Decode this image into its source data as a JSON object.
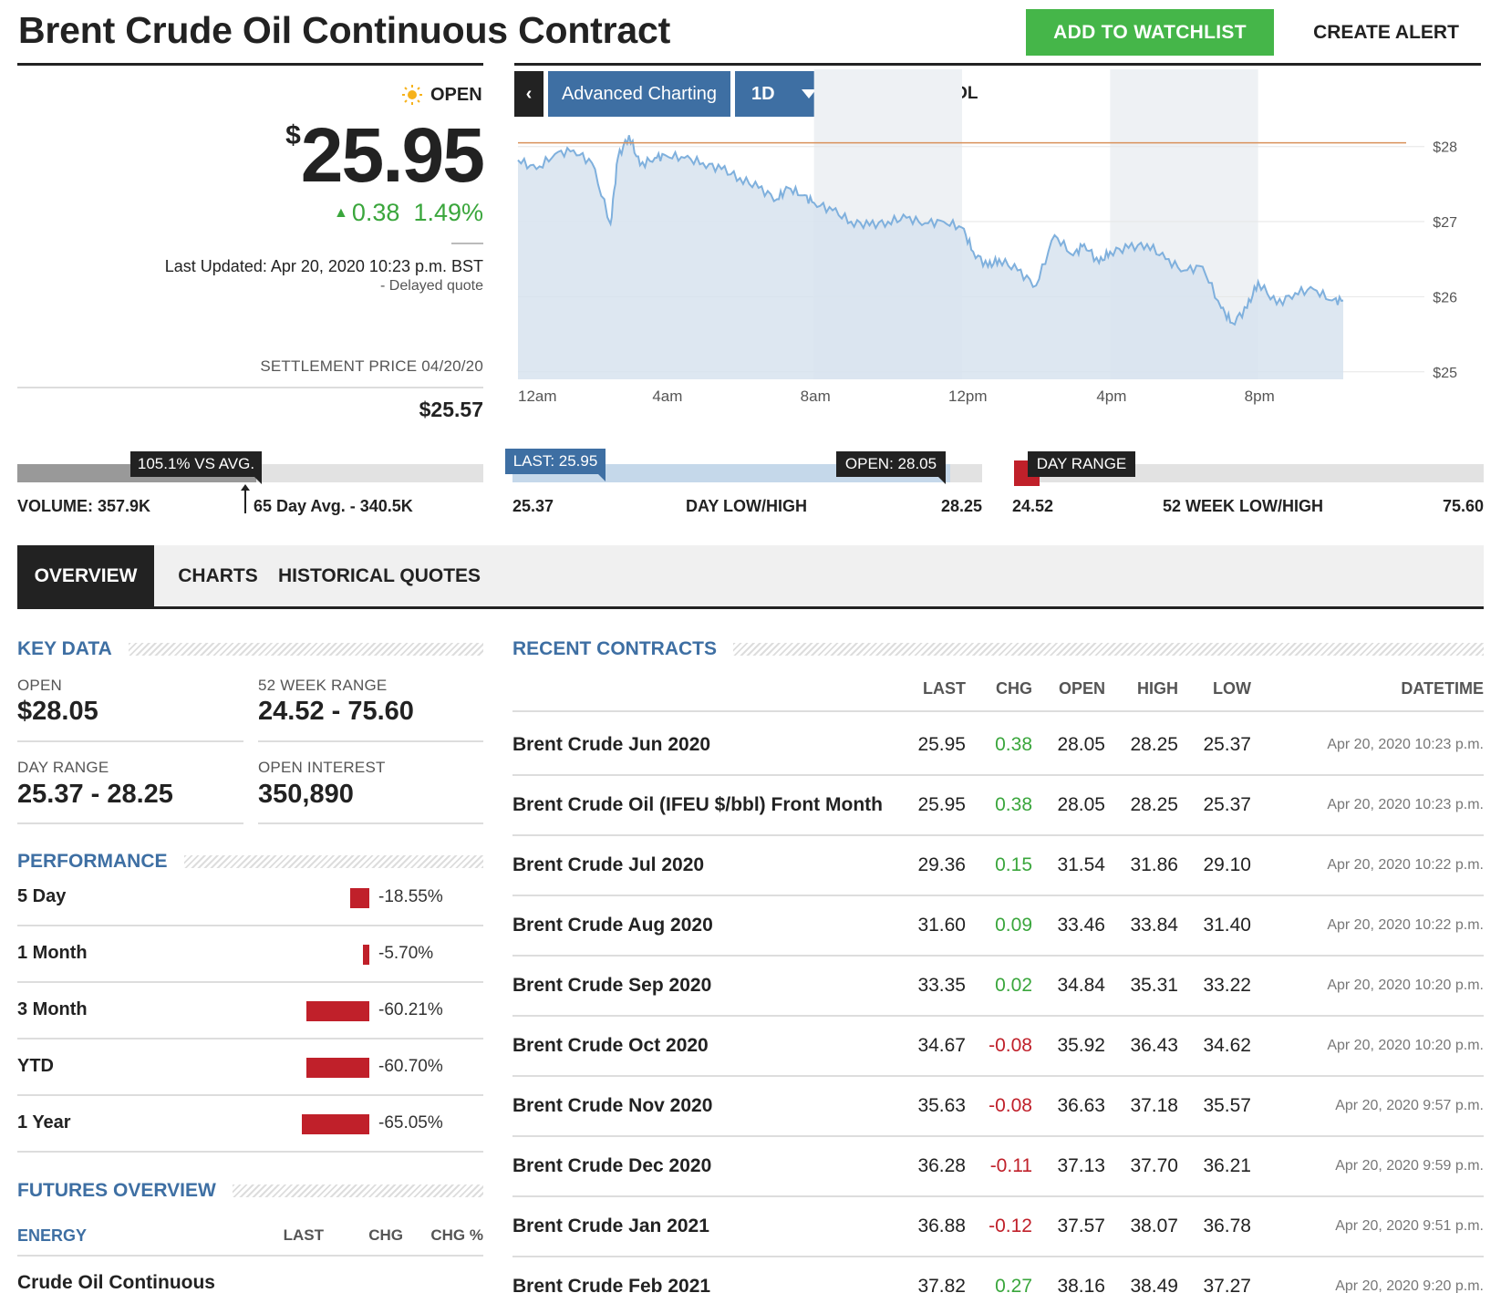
{
  "header": {
    "title": "Brent Crude Oil Continuous Contract",
    "watchlist_label": "ADD TO WATCHLIST",
    "alert_label": "CREATE ALERT"
  },
  "quote": {
    "status": "OPEN",
    "currency": "$",
    "price": "25.95",
    "change": "0.38",
    "change_pct": "1.49%",
    "last_updated": "Last Updated: Apr 20, 2020 10:23 p.m. BST",
    "delayed": "- Delayed quote",
    "settlement_label": "SETTLEMENT PRICE 04/20/20",
    "settlement_value": "$25.57"
  },
  "toolbar": {
    "back": "‹",
    "advanced": "Advanced Charting",
    "interval": "1D",
    "dollar": "$",
    "percent": "%",
    "volume": "VOL"
  },
  "chart_data": {
    "type": "area",
    "x_ticks": [
      "12am",
      "4am",
      "8am",
      "12pm",
      "4pm",
      "8pm"
    ],
    "y_ticks": [
      "$28",
      "$27",
      "$26",
      "$25"
    ],
    "ylim": [
      24.9,
      28.3
    ],
    "reference_line": 28.05,
    "x": [
      0,
      0.5,
      1,
      1.5,
      2,
      2.5,
      2.7,
      3,
      3.3,
      3.7,
      4,
      4.5,
      5,
      5.5,
      6,
      6.5,
      7,
      7.3,
      7.7,
      8,
      8.5,
      9,
      9.5,
      10,
      10.5,
      11,
      11.5,
      12,
      12.3,
      12.7,
      13,
      13.5,
      14,
      14.5,
      15,
      15.3,
      15.7,
      16,
      16.5,
      17,
      17.5,
      18,
      18.5,
      19,
      19.3,
      19.7,
      20,
      20.5,
      21,
      21.5,
      22,
      22.3
    ],
    "values": [
      27.82,
      27.7,
      27.9,
      27.95,
      27.78,
      26.97,
      27.85,
      28.15,
      27.75,
      27.85,
      27.88,
      27.85,
      27.78,
      27.7,
      27.58,
      27.45,
      27.3,
      27.45,
      27.35,
      27.25,
      27.15,
      27.0,
      26.95,
      27.0,
      27.05,
      26.98,
      27.0,
      26.92,
      26.6,
      26.4,
      26.5,
      26.35,
      26.15,
      26.82,
      26.55,
      26.7,
      26.45,
      26.6,
      26.65,
      26.7,
      26.5,
      26.35,
      26.4,
      25.85,
      25.65,
      25.85,
      26.2,
      25.9,
      26.05,
      26.1,
      25.95,
      25.95
    ],
    "legend": "none",
    "grid": true
  },
  "ranges": {
    "volume_tag": "105.1% VS AVG.",
    "volume": "VOLUME: 357.9K",
    "volume_avg": "65 Day Avg. - 340.5K",
    "volume_fill": 1.051,
    "last_tag": "LAST: 25.95",
    "open_tag": "OPEN: 28.05",
    "day_low": "25.37",
    "day_label": "DAY LOW/HIGH",
    "day_high": "28.25",
    "day_range_tag": "DAY RANGE",
    "wk_low": "24.52",
    "wk_label": "52 WEEK LOW/HIGH",
    "wk_high": "75.60"
  },
  "tabs": [
    "OVERVIEW",
    "CHARTS",
    "HISTORICAL QUOTES"
  ],
  "key_data": {
    "title": "KEY DATA",
    "open_label": "OPEN",
    "open_value": "$28.05",
    "wk_label": "52 WEEK RANGE",
    "wk_value": "24.52 - 75.60",
    "day_label": "DAY RANGE",
    "day_value": "25.37 - 28.25",
    "oi_label": "OPEN INTEREST",
    "oi_value": "350,890"
  },
  "performance": {
    "title": "PERFORMANCE",
    "rows": [
      {
        "label": "5 Day",
        "value": "-18.55%",
        "pct": -18.55
      },
      {
        "label": "1 Month",
        "value": "-5.70%",
        "pct": -5.7
      },
      {
        "label": "3 Month",
        "value": "-60.21%",
        "pct": -60.21
      },
      {
        "label": "YTD",
        "value": "-60.70%",
        "pct": -60.7
      },
      {
        "label": "1 Year",
        "value": "-65.05%",
        "pct": -65.05
      }
    ]
  },
  "futures": {
    "title": "FUTURES OVERVIEW",
    "category": "ENERGY",
    "h_last": "LAST",
    "h_chg": "CHG",
    "h_chgpct": "CHG %",
    "row_name": "Crude Oil Continuous"
  },
  "recent": {
    "title": "RECENT CONTRACTS",
    "headers": [
      "LAST",
      "CHG",
      "OPEN",
      "HIGH",
      "LOW",
      "DATETIME"
    ],
    "rows": [
      {
        "name": "Brent Crude Jun 2020",
        "last": "25.95",
        "chg": "0.38",
        "open": "28.05",
        "high": "28.25",
        "low": "25.37",
        "time": "Apr 20, 2020 10:23 p.m."
      },
      {
        "name": "Brent Crude Oil (IFEU $/bbl) Front Month",
        "last": "25.95",
        "chg": "0.38",
        "open": "28.05",
        "high": "28.25",
        "low": "25.37",
        "time": "Apr 20, 2020 10:23 p.m."
      },
      {
        "name": "Brent Crude Jul 2020",
        "last": "29.36",
        "chg": "0.15",
        "open": "31.54",
        "high": "31.86",
        "low": "29.10",
        "time": "Apr 20, 2020 10:22 p.m."
      },
      {
        "name": "Brent Crude Aug 2020",
        "last": "31.60",
        "chg": "0.09",
        "open": "33.46",
        "high": "33.84",
        "low": "31.40",
        "time": "Apr 20, 2020 10:22 p.m."
      },
      {
        "name": "Brent Crude Sep 2020",
        "last": "33.35",
        "chg": "0.02",
        "open": "34.84",
        "high": "35.31",
        "low": "33.22",
        "time": "Apr 20, 2020 10:20 p.m."
      },
      {
        "name": "Brent Crude Oct 2020",
        "last": "34.67",
        "chg": "-0.08",
        "open": "35.92",
        "high": "36.43",
        "low": "34.62",
        "time": "Apr 20, 2020 10:20 p.m."
      },
      {
        "name": "Brent Crude Nov 2020",
        "last": "35.63",
        "chg": "-0.08",
        "open": "36.63",
        "high": "37.18",
        "low": "35.57",
        "time": "Apr 20, 2020 9:57 p.m."
      },
      {
        "name": "Brent Crude Dec 2020",
        "last": "36.28",
        "chg": "-0.11",
        "open": "37.13",
        "high": "37.70",
        "low": "36.21",
        "time": "Apr 20, 2020 9:59 p.m."
      },
      {
        "name": "Brent Crude Jan 2021",
        "last": "36.88",
        "chg": "-0.12",
        "open": "37.57",
        "high": "38.07",
        "low": "36.78",
        "time": "Apr 20, 2020 9:51 p.m."
      },
      {
        "name": "Brent Crude Feb 2021",
        "last": "37.82",
        "chg": "0.27",
        "open": "38.16",
        "high": "38.49",
        "low": "37.27",
        "time": "Apr 20, 2020 9:20 p.m."
      }
    ]
  },
  "colors": {
    "accent": "#3e6fa3",
    "positive": "#3aa63c",
    "negative": "#c0202a",
    "watch": "#45b649"
  }
}
